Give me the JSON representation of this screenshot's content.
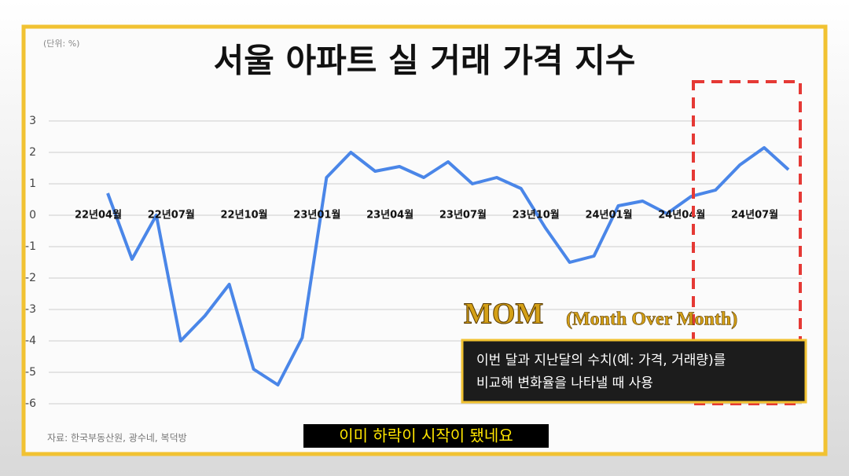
{
  "chart_data": {
    "type": "line",
    "title": "서울 아파트 실 거래 가격 지수",
    "unit_label": "(단위: %)",
    "source": "자료: 한국부동산원, 광수네, 복덕방",
    "categories": [
      "22년04월",
      null,
      null,
      "22년07월",
      null,
      null,
      "22년10월",
      null,
      null,
      "23년01월",
      null,
      null,
      "23년04월",
      null,
      null,
      "23년07월",
      null,
      null,
      "23년10월",
      null,
      null,
      "24년01월",
      null,
      null,
      "24년04월",
      null,
      null,
      "24년07월",
      null
    ],
    "values": [
      0.7,
      -1.4,
      0,
      -4.0,
      -3.2,
      -2.2,
      -4.9,
      -5.4,
      -3.9,
      1.2,
      2.0,
      1.4,
      1.55,
      1.2,
      1.7,
      1.0,
      1.2,
      0.85,
      -0.4,
      -1.5,
      -1.3,
      0.3,
      0.45,
      0.05,
      0.6,
      0.8,
      1.6,
      2.15,
      1.45
    ],
    "color": "#4a86e8",
    "ylim": [
      -6,
      3
    ],
    "yticks": [
      -6,
      -5,
      -4,
      -3,
      -2,
      -1,
      0,
      1,
      2,
      3
    ],
    "grid": true
  },
  "overlay": {
    "mom_title": "MOM",
    "mom_subtitle": "(Month Over Month)",
    "mom_lines": [
      "이번 달과 지난달의 수치(예: 가격, 거래량)를",
      "비교해 변화율을 나타낼 때 사용"
    ],
    "caption": "이미 하락이 시작이 됐네요"
  }
}
